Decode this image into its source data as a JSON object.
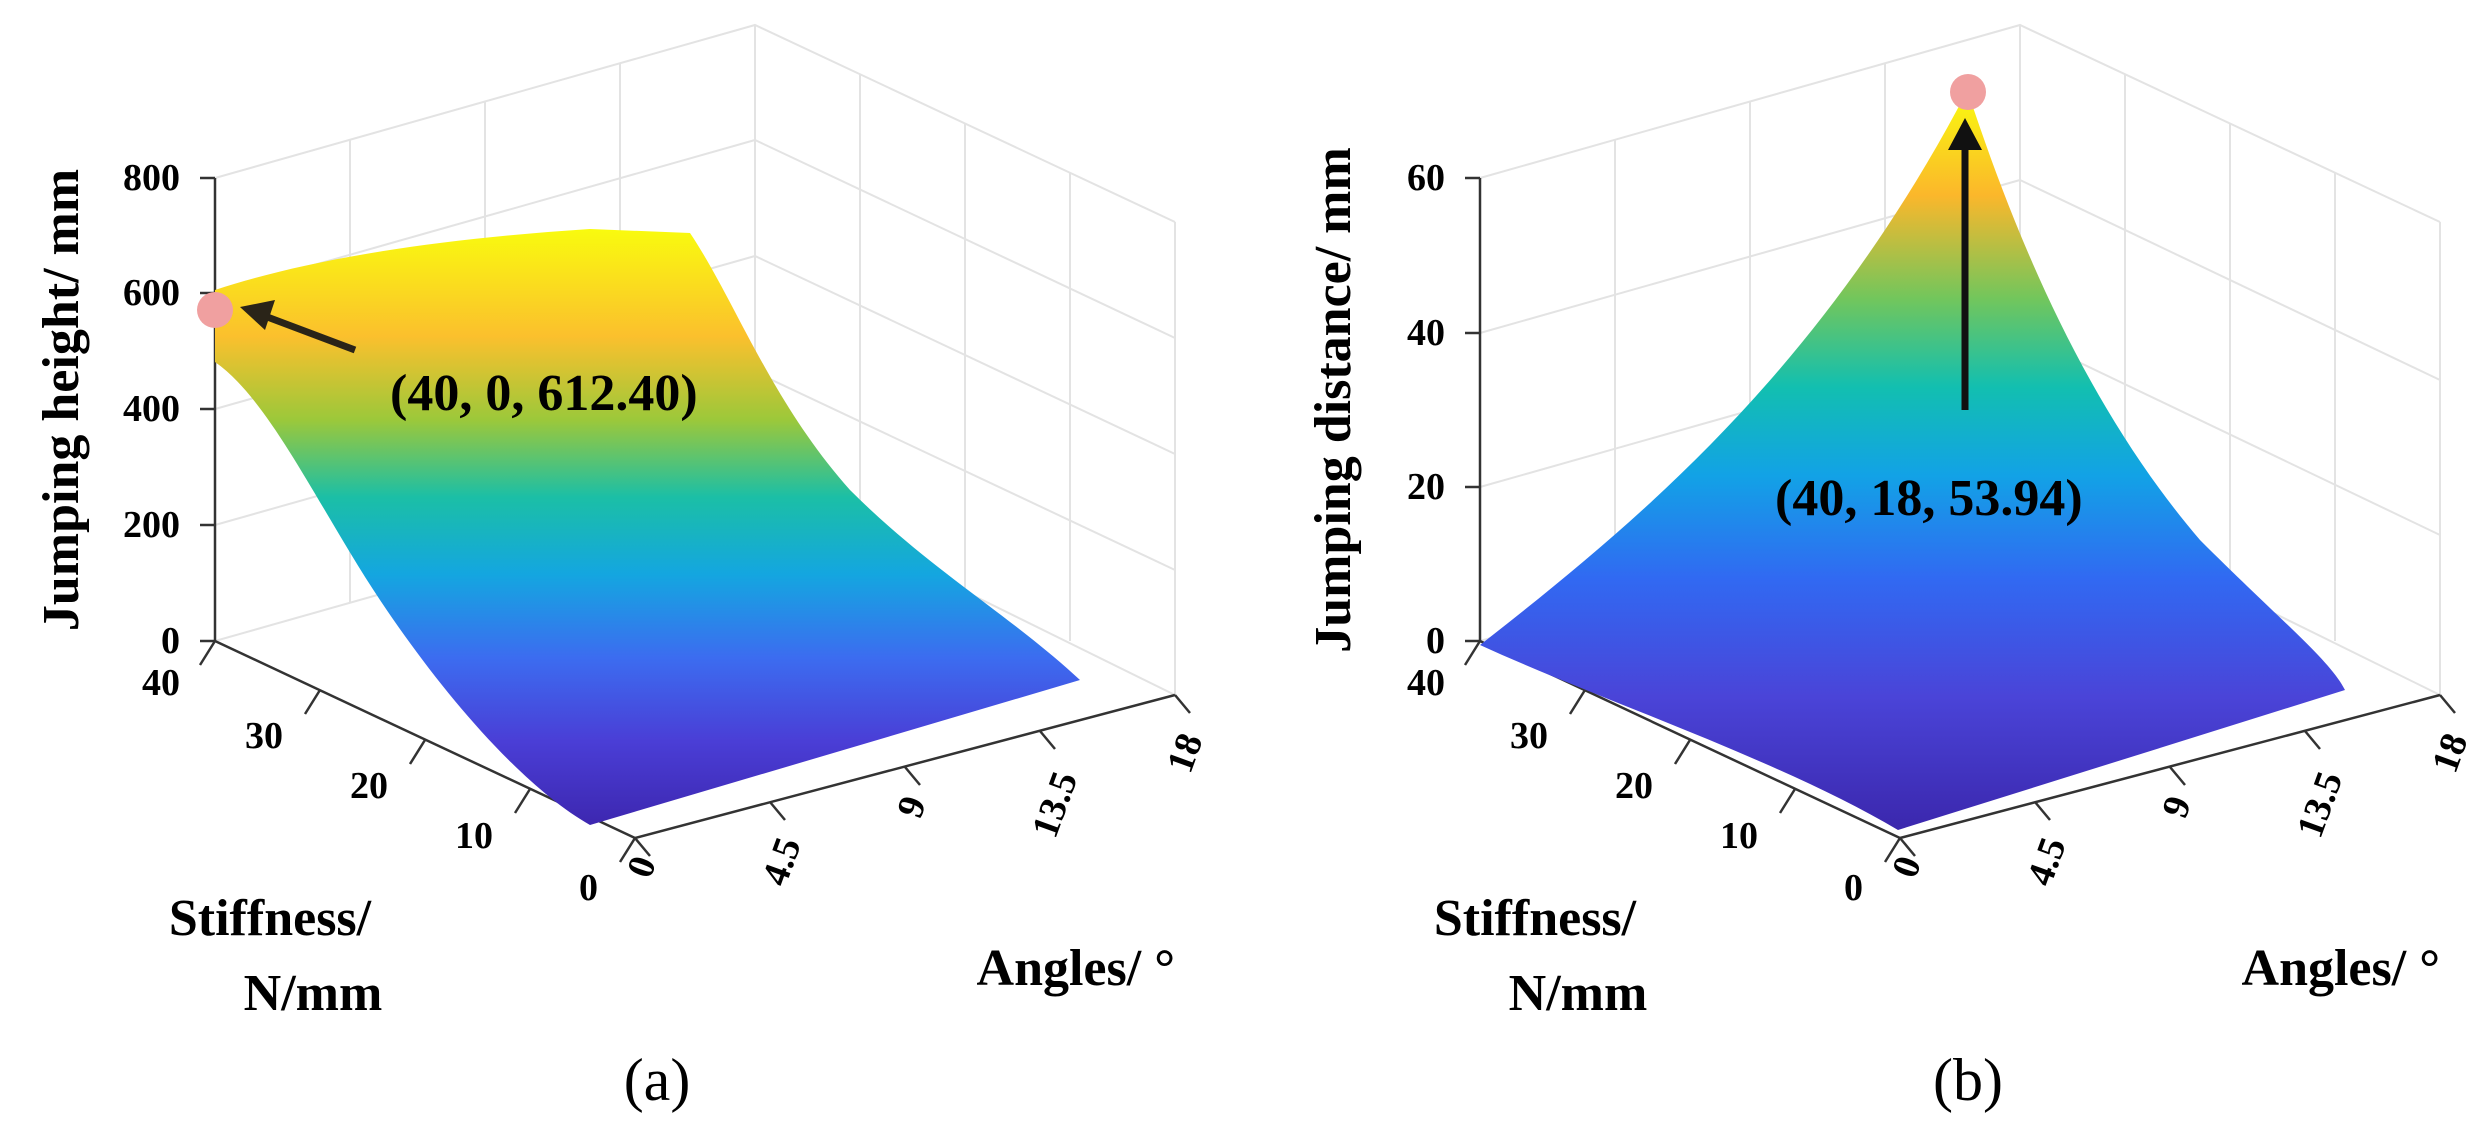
{
  "chart_data": [
    {
      "type": "surface",
      "panel_label": "(a)",
      "xlabel": "Angles/ °",
      "ylabel_lines": [
        "Stiffness/",
        "N/mm"
      ],
      "zlabel": "Jumping height/ mm",
      "x_ticks": [
        "0",
        "4.5",
        "9",
        "13.5",
        "18"
      ],
      "y_ticks": [
        "0",
        "10",
        "20",
        "30",
        "40"
      ],
      "z_ticks": [
        "0",
        "200",
        "400",
        "600",
        "800"
      ],
      "xlim": [
        0,
        18
      ],
      "ylim": [
        0,
        40
      ],
      "zlim": [
        0,
        800
      ],
      "grid": true,
      "colormap": "parula",
      "colors": {
        "marker": "#f0a0a0",
        "arrow": "#2a2418"
      },
      "surface_description": "height depends mainly on stiffness, nearly flat in angle",
      "stiffness_profile_k": [
        0,
        10,
        20,
        30,
        40
      ],
      "stiffness_profile_height": [
        0,
        30,
        160,
        470,
        612.4
      ],
      "annotation": {
        "text": "(40, 0, 612.40)",
        "point": [
          0,
          40,
          612.4
        ]
      }
    },
    {
      "type": "surface",
      "panel_label": "(b)",
      "xlabel": "Angles/ °",
      "ylabel_lines": [
        "Stiffness/",
        "N/mm"
      ],
      "zlabel": "Jumping distance/ mm",
      "x_ticks": [
        "0",
        "4.5",
        "9",
        "13.5",
        "18"
      ],
      "y_ticks": [
        "0",
        "10",
        "20",
        "30",
        "40"
      ],
      "z_ticks": [
        "0",
        "20",
        "40",
        "60"
      ],
      "xlim": [
        0,
        18
      ],
      "ylim": [
        0,
        40
      ],
      "zlim": [
        0,
        60
      ],
      "grid": true,
      "colormap": "parula",
      "colors": {
        "marker": "#f0a0a0",
        "arrow": "#111111"
      },
      "surface_description": "distance grows with both stiffness and angle, peak at maximum of both",
      "peak": [
        18,
        40,
        53.94
      ],
      "annotation": {
        "text": "(40, 18, 53.94)",
        "point": [
          18,
          40,
          53.94
        ]
      }
    }
  ]
}
